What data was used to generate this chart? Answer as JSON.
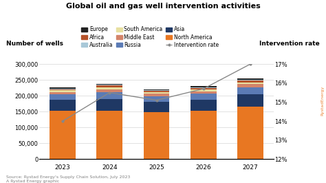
{
  "title": "Global oil and gas well intervention activities",
  "years": [
    2023,
    2024,
    2025,
    2026,
    2027
  ],
  "ylabel_left": "Number of wells",
  "ylabel_right": "Intervention rate",
  "source_text": "Source: Rystad Energy's Supply Chain Solution, July 2023\nA Rystad Energy graphic",
  "stacked_data": {
    "North America": [
      152000,
      152000,
      148000,
      152000,
      165000
    ],
    "Asia": [
      35000,
      38000,
      33000,
      35000,
      40000
    ],
    "Russia": [
      18000,
      22000,
      18000,
      19000,
      22000
    ],
    "Middle East": [
      7000,
      9000,
      7500,
      8500,
      9500
    ],
    "South America": [
      5000,
      6000,
      5000,
      5500,
      6000
    ],
    "Africa": [
      4000,
      5000,
      4500,
      5000,
      5500
    ],
    "Australia": [
      2000,
      2500,
      2000,
      2500,
      3000
    ],
    "Europe": [
      3000,
      3500,
      3000,
      3000,
      3500
    ]
  },
  "colors": {
    "North America": "#E87722",
    "Asia": "#1F3864",
    "Russia": "#5B7BB5",
    "Middle East": "#D4846A",
    "South America": "#E8E0A0",
    "Africa": "#B5522A",
    "Australia": "#A8C8D8",
    "Europe": "#222222"
  },
  "intervention_rate": [
    14.0,
    15.5,
    15.1,
    15.7,
    17.0
  ],
  "ylim_left": [
    0,
    300000
  ],
  "ylim_right": [
    12,
    17
  ],
  "yticks_left": [
    0,
    50000,
    100000,
    150000,
    200000,
    250000,
    300000
  ],
  "yticks_right": [
    12,
    13,
    14,
    15,
    16,
    17
  ],
  "background_color": "#FFFFFF",
  "bar_width": 0.55
}
